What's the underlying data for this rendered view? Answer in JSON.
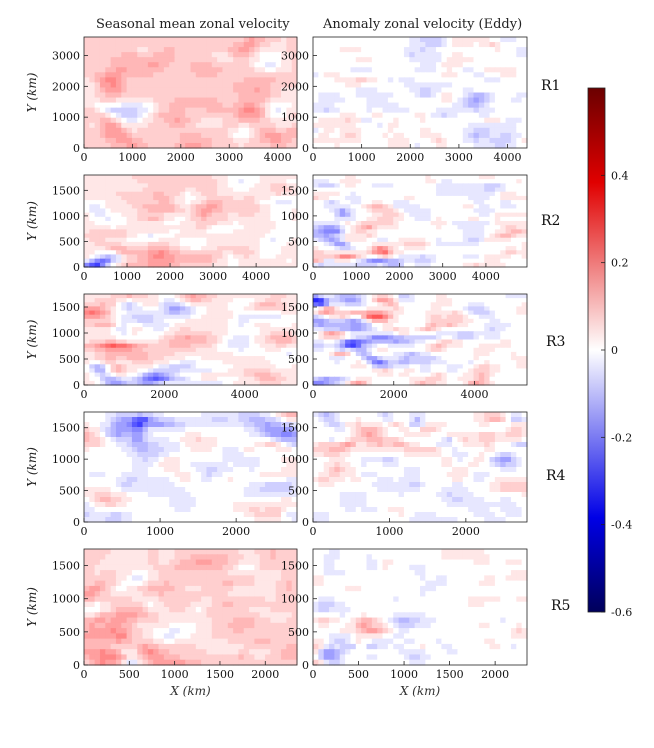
{
  "figure": {
    "col_titles": [
      "Seasonal mean zonal velocity",
      "Anomaly zonal velocity (Eddy)"
    ],
    "row_labels": [
      "R1",
      "R2",
      "R3",
      "R4",
      "R5"
    ],
    "xlabel": "X (km)",
    "ylabel": "Y (km)"
  },
  "chart_data": {
    "type": "heatmap",
    "variable": "zonal velocity",
    "colormap": "blue-white-red (diverging)",
    "colorbar": {
      "min": -0.6,
      "max": 0.6,
      "ticks": [
        0.4,
        0.2,
        0,
        -0.2,
        -0.4,
        -0.6
      ],
      "tick_labels": [
        "0.4",
        "0.2",
        "0",
        "-0.2",
        "-0.4",
        "-0.6"
      ]
    },
    "rows": [
      {
        "label": "R1",
        "xlim": [
          0,
          4400
        ],
        "ylim": [
          0,
          3600
        ],
        "xticks": [
          0,
          1000,
          2000,
          3000,
          4000
        ],
        "yticks": [
          0,
          1000,
          2000,
          3000
        ],
        "seed": 11,
        "mean_bias": 0.09,
        "mean_amp": 0.1,
        "eddy_amp": 0.1,
        "gradient": "uniform"
      },
      {
        "label": "R2",
        "xlim": [
          0,
          4950
        ],
        "ylim": [
          0,
          1800
        ],
        "xticks": [
          0,
          1000,
          2000,
          3000,
          4000
        ],
        "yticks": [
          0,
          500,
          1000,
          1500
        ],
        "seed": 23,
        "mean_bias": 0.04,
        "mean_amp": 0.18,
        "eddy_amp": 0.18,
        "gradient": "bottom-left"
      },
      {
        "label": "R3",
        "xlim": [
          0,
          5300
        ],
        "ylim": [
          0,
          1750
        ],
        "xticks": [
          0,
          2000,
          4000
        ],
        "yticks": [
          0,
          500,
          1000,
          1500
        ],
        "seed": 37,
        "mean_bias": 0.03,
        "mean_amp": 0.18,
        "eddy_amp": 0.2,
        "gradient": "left"
      },
      {
        "label": "R4",
        "xlim": [
          0,
          2800
        ],
        "ylim": [
          0,
          1750
        ],
        "xticks": [
          0,
          1000,
          2000
        ],
        "yticks": [
          0,
          500,
          1000,
          1500
        ],
        "seed": 41,
        "mean_bias": -0.01,
        "mean_amp": 0.12,
        "eddy_amp": 0.12,
        "gradient": "top"
      },
      {
        "label": "R5",
        "xlim": [
          0,
          2350
        ],
        "ylim": [
          0,
          1750
        ],
        "xticks": [
          0,
          500,
          1000,
          1500,
          2000
        ],
        "yticks": [
          0,
          500,
          1000,
          1500
        ],
        "seed": 53,
        "mean_bias": 0.07,
        "mean_amp": 0.16,
        "eddy_amp": 0.11,
        "gradient": "bottom-left"
      }
    ]
  }
}
